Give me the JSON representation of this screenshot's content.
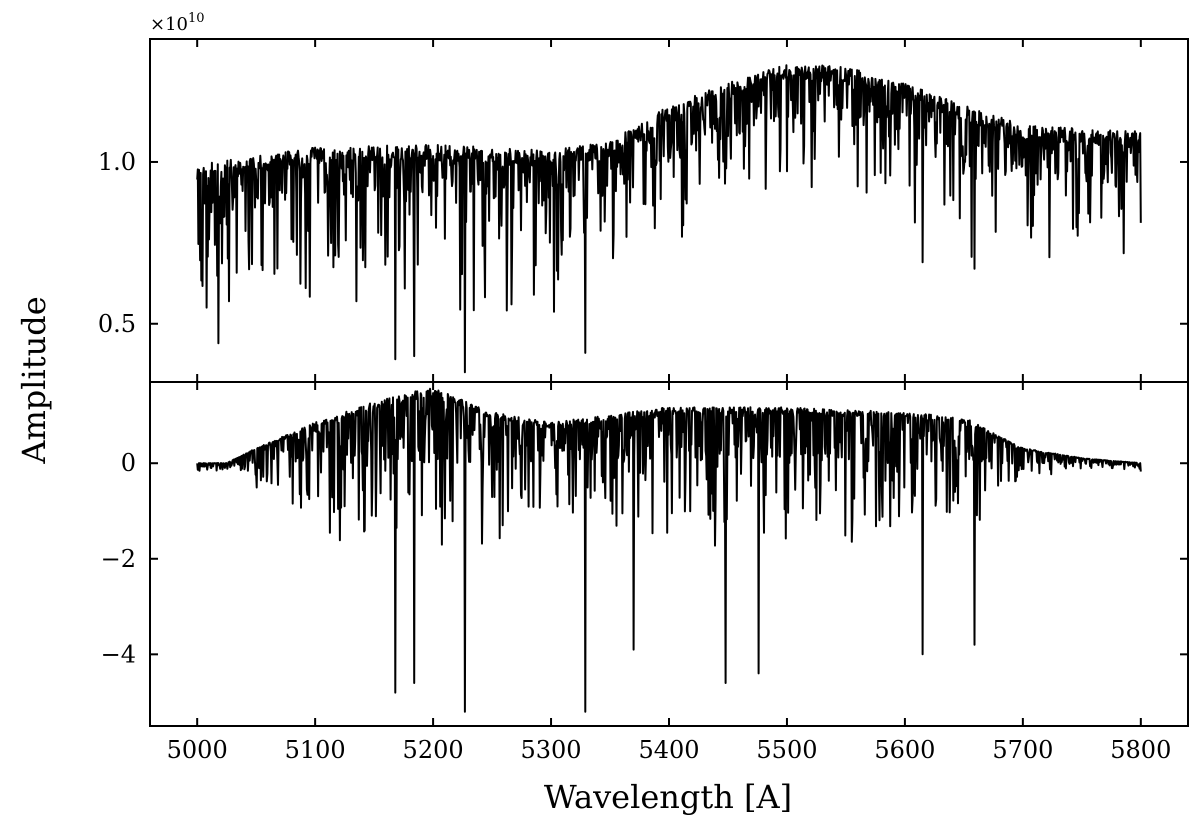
{
  "chart_data": [
    {
      "type": "line",
      "panel": "top",
      "ylabel": "Amplitude",
      "y_offset_label": {
        "base": "×10",
        "exponent": "10"
      },
      "xlim": [
        4960,
        5840
      ],
      "ylim": [
        0.32,
        1.38
      ],
      "y_scale_factor": 10000000000,
      "yticks": [
        0.5,
        1.0
      ],
      "ytick_labels": [
        "0.5",
        "1.0"
      ],
      "xticks": [
        5000,
        5100,
        5200,
        5300,
        5400,
        5500,
        5600,
        5700,
        5800
      ],
      "grid": false,
      "series": [
        {
          "x": [
            5000,
            5100,
            5200,
            5300,
            5350,
            5400,
            5450,
            5500,
            5550,
            5600,
            5650,
            5700,
            5750,
            5800
          ],
          "values": [
            0.97,
            1.02,
            1.03,
            1.01,
            1.04,
            1.15,
            1.22,
            1.28,
            1.27,
            1.22,
            1.15,
            1.09,
            1.08,
            1.07
          ]
        }
      ],
      "notable_minima": [
        {
          "x": 5004,
          "y": 0.7
        },
        {
          "x": 5008,
          "y": 0.55
        },
        {
          "x": 5018,
          "y": 0.44
        },
        {
          "x": 5168,
          "y": 0.39
        },
        {
          "x": 5184,
          "y": 0.4
        },
        {
          "x": 5227,
          "y": 0.35
        },
        {
          "x": 5329,
          "y": 0.41
        },
        {
          "x": 5615,
          "y": 0.69
        },
        {
          "x": 5659,
          "y": 0.67
        }
      ]
    },
    {
      "type": "line",
      "panel": "bottom",
      "xlabel": "Wavelength [A]",
      "xlim": [
        4960,
        5840
      ],
      "ylim": [
        -5.5,
        1.7
      ],
      "yticks": [
        -4,
        -2,
        0
      ],
      "ytick_labels": [
        "−4",
        "−2",
        "0"
      ],
      "xticks": [
        5000,
        5100,
        5200,
        5300,
        5400,
        5500,
        5600,
        5700,
        5800
      ],
      "xtick_labels": [
        "5000",
        "5100",
        "5200",
        "5300",
        "5400",
        "5500",
        "5600",
        "5700",
        "5800"
      ],
      "grid": false,
      "series": [
        {
          "x": [
            5000,
            5025,
            5050,
            5100,
            5150,
            5200,
            5250,
            5300,
            5400,
            5500,
            5600,
            5650,
            5700,
            5750,
            5800
          ],
          "values": [
            0.0,
            0.0,
            0.3,
            0.8,
            1.2,
            1.5,
            1.0,
            0.8,
            1.1,
            1.1,
            1.0,
            0.9,
            0.3,
            0.1,
            0.0
          ]
        }
      ],
      "notable_minima": [
        {
          "x": 5168,
          "y": -4.8
        },
        {
          "x": 5184,
          "y": -4.6
        },
        {
          "x": 5227,
          "y": -5.2
        },
        {
          "x": 5329,
          "y": -5.2
        },
        {
          "x": 5370,
          "y": -3.9
        },
        {
          "x": 5448,
          "y": -4.6
        },
        {
          "x": 5476,
          "y": -4.4
        },
        {
          "x": 5615,
          "y": -4.0
        },
        {
          "x": 5659,
          "y": -3.8
        }
      ]
    }
  ]
}
